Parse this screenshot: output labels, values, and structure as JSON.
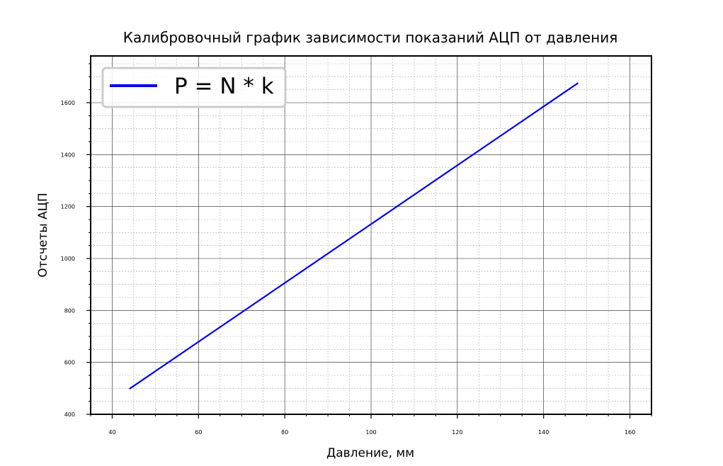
{
  "chart_data": {
    "type": "line",
    "title": "Калибровочный график зависимости показаний АЦП от давления",
    "xlabel": "Давление, мм",
    "ylabel": "Отсчеты АЦП",
    "xlim": [
      35,
      165
    ],
    "ylim": [
      400,
      1780
    ],
    "x_ticks": [
      40,
      60,
      80,
      100,
      120,
      140,
      160
    ],
    "y_ticks": [
      400,
      600,
      800,
      1000,
      1200,
      1400,
      1600
    ],
    "x_minor_step": 5,
    "y_minor_step": 50,
    "grid": "major and minor",
    "legend_position": "upper-left",
    "series": [
      {
        "name": "P = N * k",
        "color": "#0000ee",
        "x": [
          44,
          148
        ],
        "y": [
          498,
          1676
        ]
      }
    ]
  }
}
